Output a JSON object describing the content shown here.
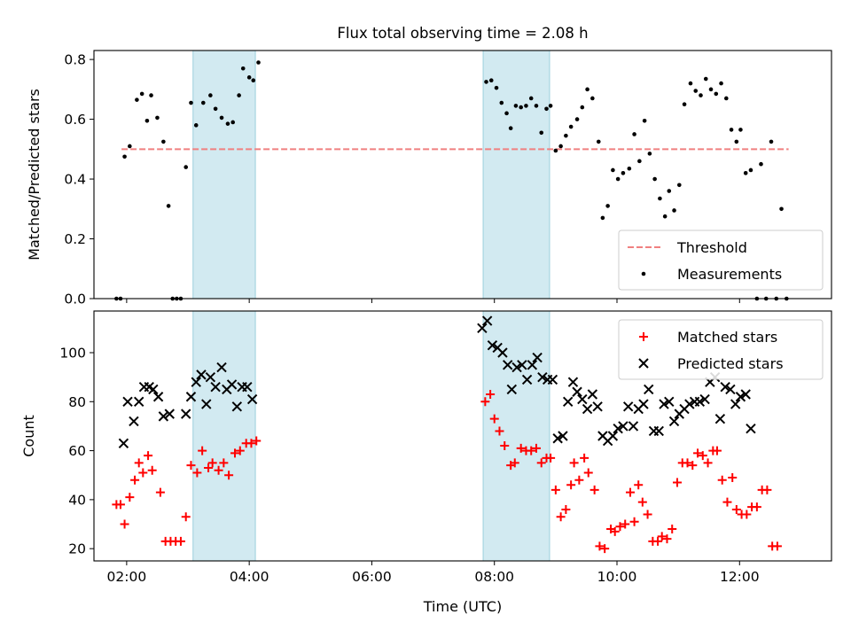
{
  "chart_data": [
    {
      "type": "scatter",
      "title": "Flux total observing time = 2.08 h",
      "xlabel": "",
      "ylabel": "Matched/Predicted stars",
      "xlim": [
        "01:28",
        "13:30"
      ],
      "ylim": [
        0,
        0.83
      ],
      "x_ticks": [
        "02:00",
        "04:00",
        "06:00",
        "08:00",
        "10:00",
        "12:00"
      ],
      "y_ticks": [
        "0.0",
        "0.2",
        "0.4",
        "0.6",
        "0.8"
      ],
      "shaded_intervals": [
        [
          "03:05",
          "04:06"
        ],
        [
          "07:49",
          "08:54"
        ]
      ],
      "threshold": {
        "name": "Threshold",
        "value": 0.5,
        "x_start": "01:55",
        "x_end": "12:48",
        "color": "#f08080"
      },
      "legend": {
        "placement": "lower-right",
        "entries": [
          "Threshold",
          "Measurements"
        ]
      },
      "series": [
        {
          "name": "Measurements",
          "color": "#000000",
          "points": [
            [
              "01:50",
              0.0
            ],
            [
              "01:54",
              0.0
            ],
            [
              "01:58",
              0.475
            ],
            [
              "02:03",
              0.51
            ],
            [
              "02:10",
              0.665
            ],
            [
              "02:15",
              0.685
            ],
            [
              "02:20",
              0.595
            ],
            [
              "02:24",
              0.68
            ],
            [
              "02:30",
              0.605
            ],
            [
              "02:36",
              0.525
            ],
            [
              "02:41",
              0.31
            ],
            [
              "02:45",
              0.0
            ],
            [
              "02:49",
              0.0
            ],
            [
              "02:53",
              0.0
            ],
            [
              "02:58",
              0.44
            ],
            [
              "03:03",
              0.655
            ],
            [
              "03:08",
              0.58
            ],
            [
              "03:15",
              0.655
            ],
            [
              "03:22",
              0.68
            ],
            [
              "03:27",
              0.635
            ],
            [
              "03:33",
              0.605
            ],
            [
              "03:39",
              0.585
            ],
            [
              "03:44",
              0.59
            ],
            [
              "03:50",
              0.68
            ],
            [
              "03:54",
              0.77
            ],
            [
              "04:00",
              0.74
            ],
            [
              "04:04",
              0.73
            ],
            [
              "04:09",
              0.79
            ],
            [
              "07:52",
              0.725
            ],
            [
              "07:57",
              0.73
            ],
            [
              "08:02",
              0.705
            ],
            [
              "08:07",
              0.655
            ],
            [
              "08:12",
              0.62
            ],
            [
              "08:16",
              0.57
            ],
            [
              "08:21",
              0.645
            ],
            [
              "08:26",
              0.64
            ],
            [
              "08:31",
              0.645
            ],
            [
              "08:36",
              0.67
            ],
            [
              "08:41",
              0.645
            ],
            [
              "08:46",
              0.555
            ],
            [
              "08:51",
              0.635
            ],
            [
              "08:55",
              0.645
            ],
            [
              "09:00",
              0.495
            ],
            [
              "09:05",
              0.51
            ],
            [
              "09:10",
              0.545
            ],
            [
              "09:15",
              0.575
            ],
            [
              "09:21",
              0.6
            ],
            [
              "09:26",
              0.64
            ],
            [
              "09:31",
              0.7
            ],
            [
              "09:36",
              0.67
            ],
            [
              "09:42",
              0.525
            ],
            [
              "09:46",
              0.27
            ],
            [
              "09:51",
              0.31
            ],
            [
              "09:56",
              0.43
            ],
            [
              "10:01",
              0.4
            ],
            [
              "10:06",
              0.42
            ],
            [
              "10:12",
              0.435
            ],
            [
              "10:17",
              0.55
            ],
            [
              "10:22",
              0.46
            ],
            [
              "10:27",
              0.595
            ],
            [
              "10:32",
              0.485
            ],
            [
              "10:37",
              0.4
            ],
            [
              "10:42",
              0.335
            ],
            [
              "10:47",
              0.275
            ],
            [
              "10:51",
              0.36
            ],
            [
              "10:56",
              0.295
            ],
            [
              "11:01",
              0.38
            ],
            [
              "11:06",
              0.65
            ],
            [
              "11:12",
              0.72
            ],
            [
              "11:17",
              0.695
            ],
            [
              "11:22",
              0.68
            ],
            [
              "11:27",
              0.735
            ],
            [
              "11:32",
              0.7
            ],
            [
              "11:37",
              0.685
            ],
            [
              "11:42",
              0.72
            ],
            [
              "11:47",
              0.67
            ],
            [
              "11:52",
              0.565
            ],
            [
              "11:57",
              0.525
            ],
            [
              "12:01",
              0.565
            ],
            [
              "12:06",
              0.42
            ],
            [
              "12:11",
              0.43
            ],
            [
              "12:17",
              0.0
            ],
            [
              "12:21",
              0.45
            ],
            [
              "12:26",
              0.0
            ],
            [
              "12:31",
              0.525
            ],
            [
              "12:36",
              0.0
            ],
            [
              "12:41",
              0.3
            ],
            [
              "12:46",
              0.0
            ]
          ]
        }
      ]
    },
    {
      "type": "scatter",
      "title": "",
      "xlabel": "Time (UTC)",
      "ylabel": "Count",
      "xlim": [
        "01:28",
        "13:30"
      ],
      "ylim": [
        15,
        117
      ],
      "x_ticks": [
        "02:00",
        "04:00",
        "06:00",
        "08:00",
        "10:00",
        "12:00"
      ],
      "y_ticks": [
        "20",
        "40",
        "60",
        "80",
        "100"
      ],
      "shaded_intervals": [
        [
          "03:05",
          "04:06"
        ],
        [
          "07:49",
          "08:54"
        ]
      ],
      "legend": {
        "placement": "top-right",
        "entries": [
          "Matched stars",
          "Predicted stars"
        ]
      },
      "series": [
        {
          "name": "Matched stars",
          "marker": "plus",
          "color": "#ff0000",
          "points": [
            [
              "01:50",
              38
            ],
            [
              "01:54",
              38
            ],
            [
              "01:58",
              30
            ],
            [
              "02:03",
              41
            ],
            [
              "02:08",
              48
            ],
            [
              "02:12",
              55
            ],
            [
              "02:16",
              51
            ],
            [
              "02:21",
              58
            ],
            [
              "02:25",
              52
            ],
            [
              "02:33",
              43
            ],
            [
              "02:38",
              23
            ],
            [
              "02:43",
              23
            ],
            [
              "02:48",
              23
            ],
            [
              "02:53",
              23
            ],
            [
              "02:58",
              33
            ],
            [
              "03:03",
              54
            ],
            [
              "03:09",
              51
            ],
            [
              "03:14",
              60
            ],
            [
              "03:20",
              53
            ],
            [
              "03:24",
              55
            ],
            [
              "03:30",
              52
            ],
            [
              "03:35",
              55
            ],
            [
              "03:40",
              50
            ],
            [
              "03:46",
              59
            ],
            [
              "03:51",
              60
            ],
            [
              "03:57",
              63
            ],
            [
              "04:02",
              63
            ],
            [
              "04:07",
              64
            ],
            [
              "07:51",
              80
            ],
            [
              "07:56",
              83
            ],
            [
              "08:00",
              73
            ],
            [
              "08:05",
              68
            ],
            [
              "08:10",
              62
            ],
            [
              "08:16",
              54
            ],
            [
              "08:20",
              55
            ],
            [
              "08:26",
              61
            ],
            [
              "08:31",
              60
            ],
            [
              "08:36",
              60
            ],
            [
              "08:41",
              61
            ],
            [
              "08:46",
              55
            ],
            [
              "08:51",
              57
            ],
            [
              "08:55",
              57
            ],
            [
              "09:00",
              44
            ],
            [
              "09:05",
              33
            ],
            [
              "09:10",
              36
            ],
            [
              "09:15",
              46
            ],
            [
              "09:18",
              55
            ],
            [
              "09:23",
              48
            ],
            [
              "09:28",
              57
            ],
            [
              "09:32",
              51
            ],
            [
              "09:38",
              44
            ],
            [
              "09:43",
              21
            ],
            [
              "09:48",
              20
            ],
            [
              "09:54",
              28
            ],
            [
              "09:58",
              27
            ],
            [
              "10:03",
              29
            ],
            [
              "10:08",
              30
            ],
            [
              "10:13",
              43
            ],
            [
              "10:17",
              31
            ],
            [
              "10:21",
              46
            ],
            [
              "10:25",
              39
            ],
            [
              "10:30",
              34
            ],
            [
              "10:35",
              23
            ],
            [
              "10:40",
              23
            ],
            [
              "10:44",
              25
            ],
            [
              "10:49",
              24
            ],
            [
              "10:54",
              28
            ],
            [
              "10:59",
              47
            ],
            [
              "11:04",
              55
            ],
            [
              "11:09",
              55
            ],
            [
              "11:14",
              54
            ],
            [
              "11:19",
              59
            ],
            [
              "11:24",
              58
            ],
            [
              "11:29",
              55
            ],
            [
              "11:34",
              60
            ],
            [
              "11:38",
              60
            ],
            [
              "11:43",
              48
            ],
            [
              "11:48",
              39
            ],
            [
              "11:53",
              49
            ],
            [
              "11:57",
              36
            ],
            [
              "12:02",
              34
            ],
            [
              "12:07",
              34
            ],
            [
              "12:12",
              37
            ],
            [
              "12:17",
              37
            ],
            [
              "12:22",
              44
            ],
            [
              "12:27",
              44
            ],
            [
              "12:32",
              21
            ],
            [
              "12:37",
              21
            ]
          ]
        },
        {
          "name": "Predicted stars",
          "marker": "x",
          "color": "#000000",
          "points": [
            [
              "01:57",
              63
            ],
            [
              "02:01",
              80
            ],
            [
              "02:07",
              72
            ],
            [
              "02:12",
              80
            ],
            [
              "02:17",
              86
            ],
            [
              "02:22",
              86
            ],
            [
              "02:26",
              85
            ],
            [
              "02:31",
              82
            ],
            [
              "02:36",
              74
            ],
            [
              "02:42",
              75
            ],
            [
              "02:58",
              75
            ],
            [
              "03:03",
              82
            ],
            [
              "03:08",
              88
            ],
            [
              "03:13",
              91
            ],
            [
              "03:18",
              79
            ],
            [
              "03:22",
              90
            ],
            [
              "03:27",
              86
            ],
            [
              "03:33",
              94
            ],
            [
              "03:38",
              85
            ],
            [
              "03:43",
              87
            ],
            [
              "03:48",
              78
            ],
            [
              "03:53",
              86
            ],
            [
              "03:58",
              86
            ],
            [
              "04:03",
              81
            ],
            [
              "07:48",
              110
            ],
            [
              "07:53",
              113
            ],
            [
              "07:58",
              103
            ],
            [
              "08:03",
              102
            ],
            [
              "08:08",
              100
            ],
            [
              "08:13",
              95
            ],
            [
              "08:17",
              85
            ],
            [
              "08:22",
              94
            ],
            [
              "08:27",
              95
            ],
            [
              "08:32",
              89
            ],
            [
              "08:37",
              95
            ],
            [
              "08:42",
              98
            ],
            [
              "08:47",
              90
            ],
            [
              "08:52",
              89
            ],
            [
              "08:57",
              89
            ],
            [
              "09:02",
              65
            ],
            [
              "09:07",
              66
            ],
            [
              "09:12",
              80
            ],
            [
              "09:17",
              88
            ],
            [
              "09:21",
              84
            ],
            [
              "09:26",
              81
            ],
            [
              "09:31",
              77
            ],
            [
              "09:36",
              83
            ],
            [
              "09:41",
              78
            ],
            [
              "09:46",
              66
            ],
            [
              "09:51",
              64
            ],
            [
              "09:56",
              66
            ],
            [
              "10:01",
              69
            ],
            [
              "10:06",
              70
            ],
            [
              "10:11",
              78
            ],
            [
              "10:16",
              70
            ],
            [
              "10:21",
              77
            ],
            [
              "10:26",
              79
            ],
            [
              "10:31",
              85
            ],
            [
              "10:36",
              68
            ],
            [
              "10:41",
              68
            ],
            [
              "10:46",
              79
            ],
            [
              "10:51",
              80
            ],
            [
              "10:56",
              72
            ],
            [
              "11:01",
              75
            ],
            [
              "11:06",
              77
            ],
            [
              "11:11",
              79
            ],
            [
              "11:16",
              80
            ],
            [
              "11:21",
              80
            ],
            [
              "11:26",
              81
            ],
            [
              "11:31",
              88
            ],
            [
              "11:36",
              90
            ],
            [
              "11:41",
              73
            ],
            [
              "11:46",
              86
            ],
            [
              "11:51",
              85
            ],
            [
              "11:56",
              79
            ],
            [
              "12:01",
              82
            ],
            [
              "12:06",
              83
            ],
            [
              "12:11",
              69
            ]
          ]
        }
      ]
    }
  ]
}
